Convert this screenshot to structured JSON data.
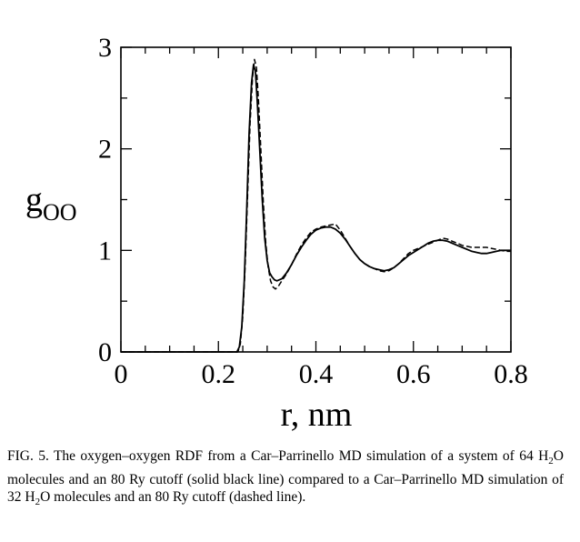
{
  "chart_data": {
    "type": "line",
    "title": "",
    "xlabel": "r, nm",
    "ylabel": {
      "main": "g",
      "subscript": "OO"
    },
    "xlim": [
      0,
      0.8
    ],
    "ylim": [
      0,
      3
    ],
    "x_ticks": [
      0,
      0.2,
      0.4,
      0.6,
      0.8
    ],
    "x_tick_labels": [
      "0",
      "0.2",
      "0.4",
      "0.6",
      "0.8"
    ],
    "y_ticks": [
      0,
      1,
      2,
      3
    ],
    "y_tick_labels": [
      "0",
      "1",
      "2",
      "3"
    ],
    "grid": false,
    "series": [
      {
        "name": "64 H2O molecules, 80 Ry cutoff",
        "style": "solid",
        "color": "#000000",
        "points": [
          [
            0.0,
            0
          ],
          [
            0.238,
            0
          ],
          [
            0.243,
            0.05
          ],
          [
            0.248,
            0.25
          ],
          [
            0.253,
            0.7
          ],
          [
            0.258,
            1.4
          ],
          [
            0.263,
            2.15
          ],
          [
            0.268,
            2.65
          ],
          [
            0.272,
            2.83
          ],
          [
            0.276,
            2.76
          ],
          [
            0.28,
            2.45
          ],
          [
            0.285,
            1.98
          ],
          [
            0.29,
            1.5
          ],
          [
            0.295,
            1.12
          ],
          [
            0.3,
            0.9
          ],
          [
            0.305,
            0.78
          ],
          [
            0.31,
            0.74
          ],
          [
            0.315,
            0.71
          ],
          [
            0.32,
            0.7
          ],
          [
            0.33,
            0.72
          ],
          [
            0.34,
            0.78
          ],
          [
            0.35,
            0.86
          ],
          [
            0.36,
            0.95
          ],
          [
            0.37,
            1.03
          ],
          [
            0.38,
            1.1
          ],
          [
            0.39,
            1.16
          ],
          [
            0.4,
            1.2
          ],
          [
            0.41,
            1.22
          ],
          [
            0.42,
            1.23
          ],
          [
            0.43,
            1.23
          ],
          [
            0.44,
            1.21
          ],
          [
            0.45,
            1.17
          ],
          [
            0.46,
            1.11
          ],
          [
            0.47,
            1.04
          ],
          [
            0.48,
            0.97
          ],
          [
            0.49,
            0.91
          ],
          [
            0.5,
            0.87
          ],
          [
            0.51,
            0.84
          ],
          [
            0.52,
            0.82
          ],
          [
            0.53,
            0.81
          ],
          [
            0.54,
            0.8
          ],
          [
            0.55,
            0.81
          ],
          [
            0.56,
            0.83
          ],
          [
            0.57,
            0.87
          ],
          [
            0.58,
            0.91
          ],
          [
            0.59,
            0.95
          ],
          [
            0.6,
            0.98
          ],
          [
            0.61,
            1.01
          ],
          [
            0.62,
            1.04
          ],
          [
            0.63,
            1.07
          ],
          [
            0.64,
            1.09
          ],
          [
            0.65,
            1.1
          ],
          [
            0.66,
            1.1
          ],
          [
            0.67,
            1.09
          ],
          [
            0.68,
            1.07
          ],
          [
            0.69,
            1.05
          ],
          [
            0.7,
            1.03
          ],
          [
            0.71,
            1.01
          ],
          [
            0.72,
            0.99
          ],
          [
            0.73,
            0.98
          ],
          [
            0.74,
            0.97
          ],
          [
            0.75,
            0.97
          ],
          [
            0.76,
            0.98
          ],
          [
            0.77,
            0.99
          ],
          [
            0.78,
            1.0
          ],
          [
            0.79,
            1.0
          ],
          [
            0.8,
            1.0
          ]
        ]
      },
      {
        "name": "32 H2O molecules, 80 Ry cutoff",
        "style": "dashed",
        "color": "#000000",
        "points": [
          [
            0.0,
            0
          ],
          [
            0.24,
            0
          ],
          [
            0.245,
            0.08
          ],
          [
            0.25,
            0.35
          ],
          [
            0.255,
            0.85
          ],
          [
            0.26,
            1.55
          ],
          [
            0.265,
            2.25
          ],
          [
            0.27,
            2.7
          ],
          [
            0.274,
            2.88
          ],
          [
            0.278,
            2.8
          ],
          [
            0.282,
            2.5
          ],
          [
            0.287,
            2.0
          ],
          [
            0.292,
            1.48
          ],
          [
            0.297,
            1.08
          ],
          [
            0.302,
            0.84
          ],
          [
            0.307,
            0.7
          ],
          [
            0.312,
            0.64
          ],
          [
            0.317,
            0.62
          ],
          [
            0.322,
            0.64
          ],
          [
            0.33,
            0.7
          ],
          [
            0.34,
            0.77
          ],
          [
            0.35,
            0.86
          ],
          [
            0.36,
            0.96
          ],
          [
            0.37,
            1.05
          ],
          [
            0.38,
            1.12
          ],
          [
            0.39,
            1.18
          ],
          [
            0.4,
            1.21
          ],
          [
            0.41,
            1.23
          ],
          [
            0.42,
            1.24
          ],
          [
            0.43,
            1.25
          ],
          [
            0.44,
            1.26
          ],
          [
            0.45,
            1.2
          ],
          [
            0.46,
            1.12
          ],
          [
            0.47,
            1.04
          ],
          [
            0.48,
            0.97
          ],
          [
            0.49,
            0.91
          ],
          [
            0.5,
            0.87
          ],
          [
            0.51,
            0.84
          ],
          [
            0.52,
            0.82
          ],
          [
            0.53,
            0.8
          ],
          [
            0.54,
            0.79
          ],
          [
            0.55,
            0.8
          ],
          [
            0.56,
            0.83
          ],
          [
            0.57,
            0.87
          ],
          [
            0.58,
            0.92
          ],
          [
            0.59,
            0.97
          ],
          [
            0.6,
            1.0
          ],
          [
            0.61,
            1.02
          ],
          [
            0.62,
            1.04
          ],
          [
            0.63,
            1.06
          ],
          [
            0.64,
            1.08
          ],
          [
            0.65,
            1.1
          ],
          [
            0.66,
            1.12
          ],
          [
            0.67,
            1.11
          ],
          [
            0.68,
            1.09
          ],
          [
            0.69,
            1.07
          ],
          [
            0.7,
            1.05
          ],
          [
            0.71,
            1.04
          ],
          [
            0.72,
            1.03
          ],
          [
            0.73,
            1.03
          ],
          [
            0.74,
            1.03
          ],
          [
            0.75,
            1.03
          ],
          [
            0.76,
            1.02
          ],
          [
            0.77,
            1.01
          ],
          [
            0.78,
            1.0
          ],
          [
            0.79,
            0.99
          ],
          [
            0.8,
            0.99
          ]
        ]
      }
    ]
  },
  "caption": {
    "seg1": "FIG. 5. The oxygen–oxygen RDF from a Car–Parrinello MD simulation of a system of 64 H",
    "sub1": "2",
    "seg2": "O molecules and an 80 Ry cutoff (solid black line) compared to a Car–Parrinello MD simulation of 32 H",
    "sub2": "2",
    "seg3": "O molecules and an 80 Ry cutoff (dashed line)."
  }
}
